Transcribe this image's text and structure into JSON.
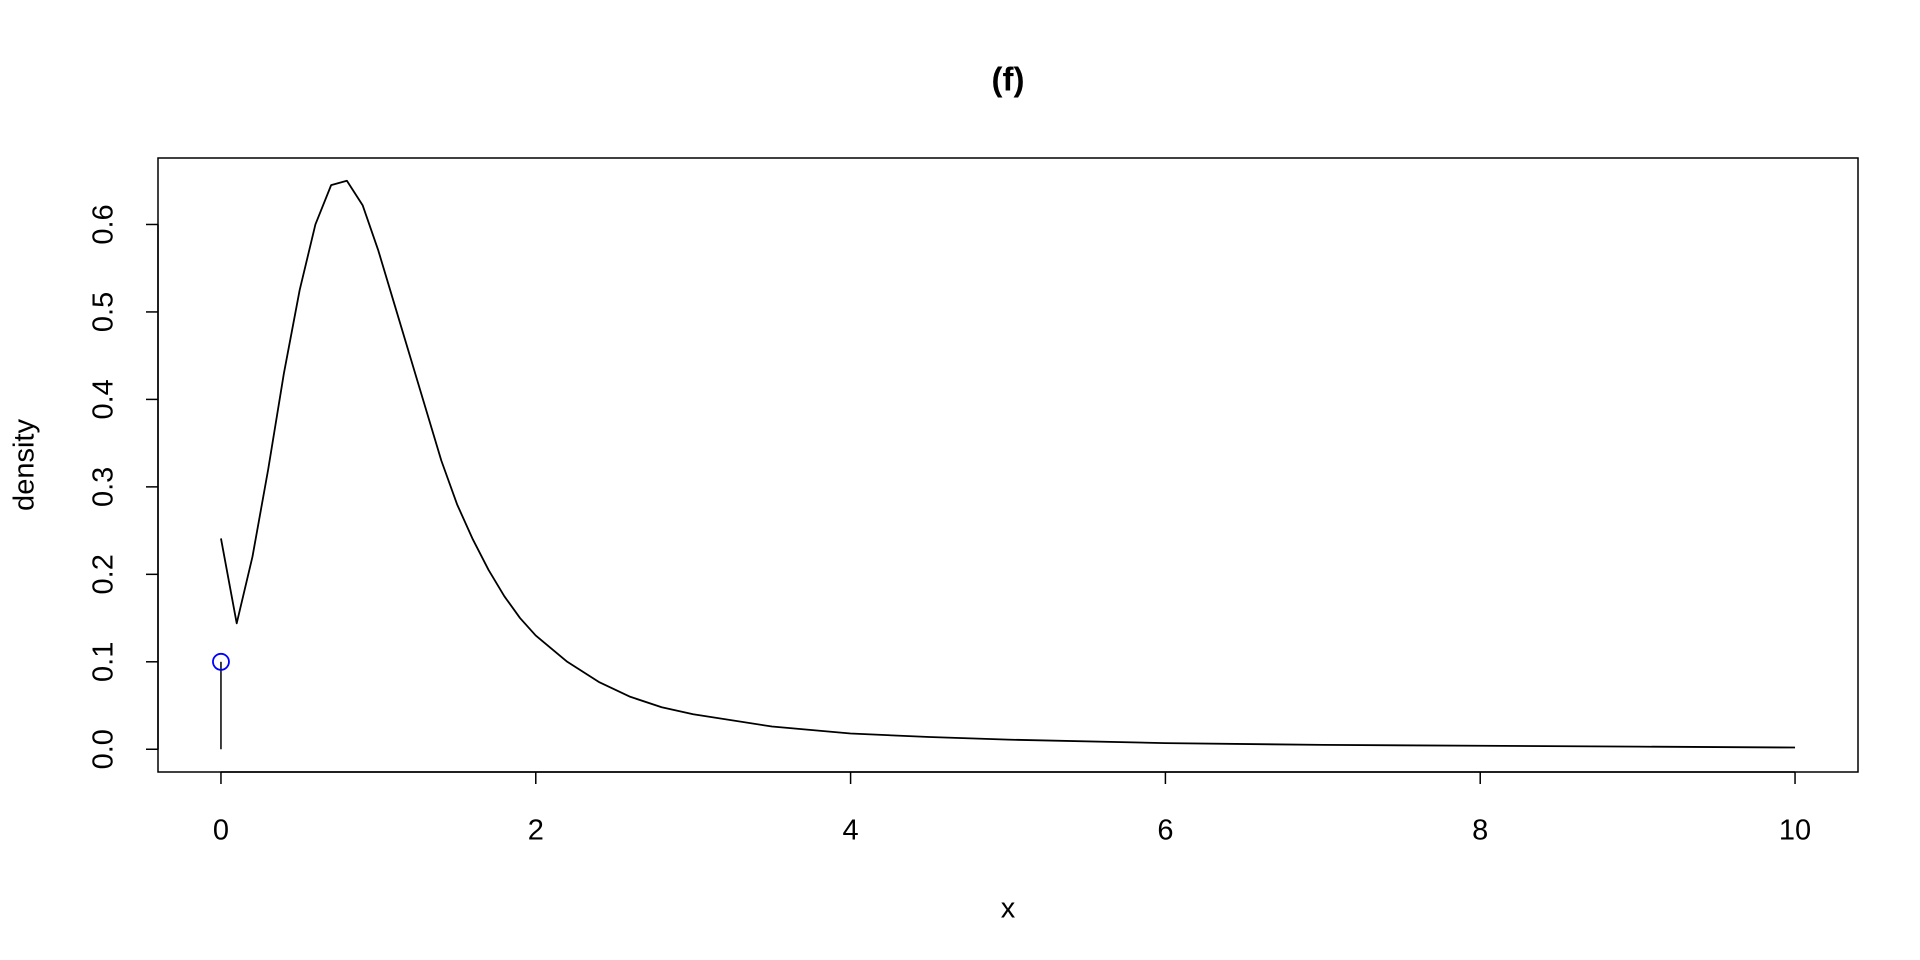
{
  "chart_data": {
    "type": "line",
    "title": "(f)",
    "x_label": "x",
    "y_label": "density",
    "x": [
      0,
      0.1,
      0.2,
      0.3,
      0.4,
      0.5,
      0.6,
      0.7,
      0.8,
      0.9,
      1.0,
      1.1,
      1.2,
      1.3,
      1.4,
      1.5,
      1.6,
      1.7,
      1.8,
      1.9,
      2.0,
      2.2,
      2.4,
      2.6,
      2.8,
      3.0,
      3.5,
      4.0,
      4.5,
      5.0,
      6.0,
      7.0,
      8.0,
      9.0,
      10.0
    ],
    "series": [
      {
        "color": "#000000",
        "values": [
          0.241,
          0.144,
          0.22,
          0.32,
          0.43,
          0.525,
          0.6,
          0.645,
          0.65,
          0.622,
          0.57,
          0.51,
          0.45,
          0.39,
          0.33,
          0.28,
          0.24,
          0.205,
          0.175,
          0.15,
          0.13,
          0.1,
          0.077,
          0.06,
          0.048,
          0.04,
          0.026,
          0.018,
          0.014,
          0.011,
          0.007,
          0.005,
          0.004,
          0.003,
          0.002
        ]
      }
    ],
    "point_mass": {
      "x": 0,
      "value": 0.1,
      "color": "#0000ff"
    },
    "xlim": [
      -0.4,
      10.4
    ],
    "ylim": [
      -0.026,
      0.676
    ],
    "xticks": [
      0,
      2,
      4,
      6,
      8,
      10
    ],
    "yticks": [
      {
        "value": 0,
        "label": "0.0"
      },
      0.1,
      0.2,
      0.3,
      0.4,
      0.5,
      0.6
    ]
  }
}
